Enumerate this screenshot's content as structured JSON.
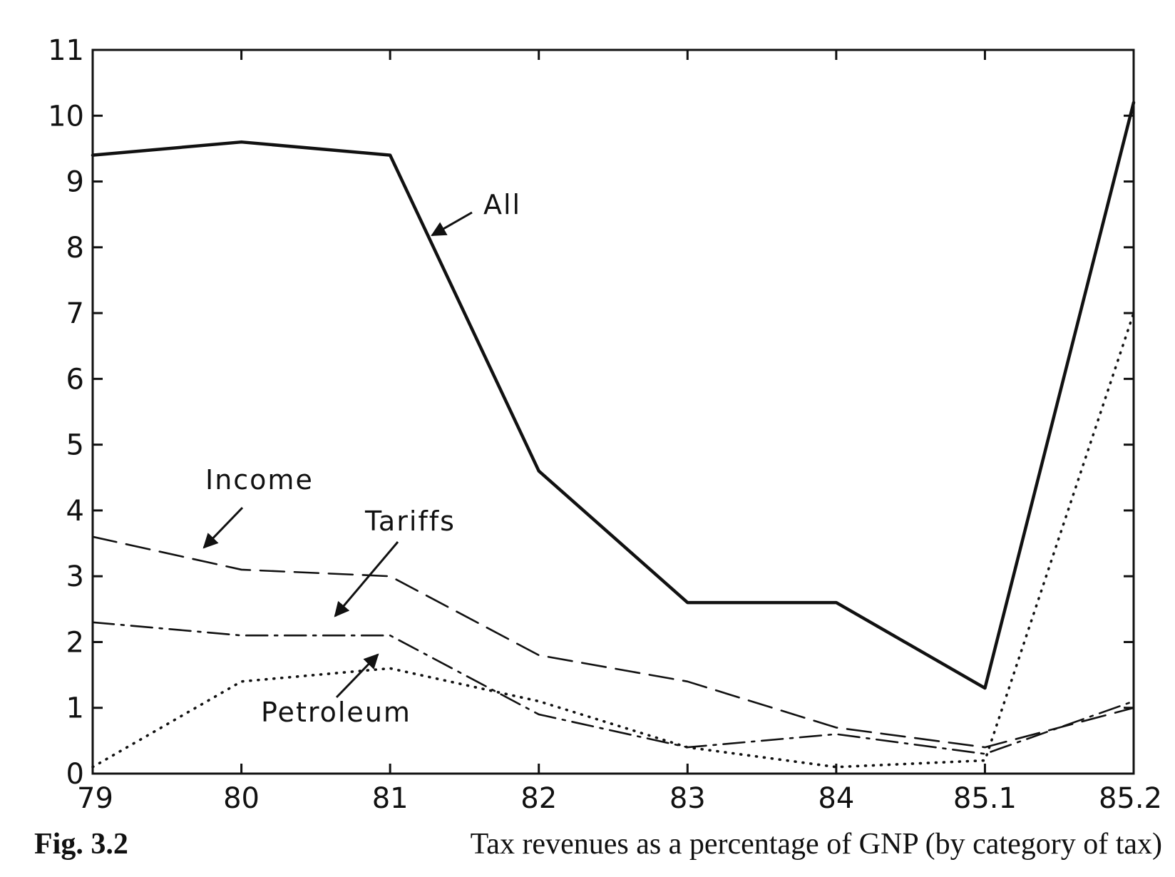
{
  "figure": {
    "number": "Fig. 3.2",
    "title": "Tax revenues as a percentage of GNP (by category of tax)"
  },
  "chart_data": {
    "type": "line",
    "title": "",
    "xlabel": "",
    "ylabel": "",
    "categories": [
      "79",
      "80",
      "81",
      "82",
      "83",
      "84",
      "85.1",
      "85.2"
    ],
    "yticks": [
      "0",
      "1",
      "2",
      "3",
      "4",
      "5",
      "6",
      "7",
      "8",
      "9",
      "10",
      "11"
    ],
    "ylim": [
      0,
      11
    ],
    "grid": false,
    "legend": "none (series labeled inline with arrows)",
    "series": [
      {
        "name": "All",
        "style": "solid",
        "values": [
          9.4,
          9.6,
          9.4,
          4.6,
          2.6,
          2.6,
          1.3,
          10.2
        ]
      },
      {
        "name": "Income",
        "style": "dashed",
        "values": [
          3.6,
          3.1,
          3.0,
          1.8,
          1.4,
          0.7,
          0.4,
          1.0
        ]
      },
      {
        "name": "Tariffs",
        "style": "dash-dot",
        "values": [
          2.3,
          2.1,
          2.1,
          0.9,
          0.4,
          0.6,
          0.3,
          1.1
        ]
      },
      {
        "name": "Petroleum",
        "style": "dotted",
        "values": [
          0.1,
          1.4,
          1.6,
          1.1,
          0.4,
          0.1,
          0.2,
          7.0
        ]
      }
    ]
  }
}
